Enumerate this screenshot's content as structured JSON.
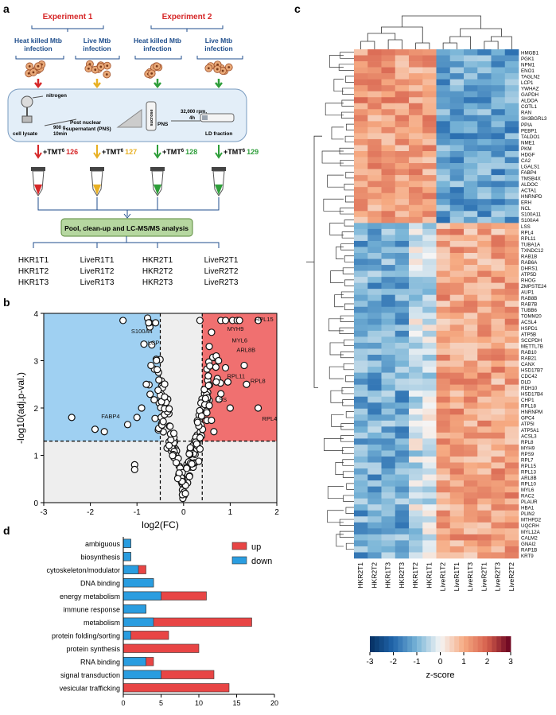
{
  "panels": {
    "a": {
      "letter": "a",
      "experiment1_title": "Experiment 1",
      "experiment2_title": "Experiment 2",
      "groups": [
        {
          "line1": "Heat killed Mtb",
          "line2": "infection"
        },
        {
          "line1": "Live Mtb",
          "line2": "infection"
        },
        {
          "line1": "Heat killed Mtb",
          "line2": "infection"
        },
        {
          "line1": "Live Mtb",
          "line2": "infection"
        }
      ],
      "protocol": {
        "nitrogen": "nitrogen",
        "cell_lysate": "cell lysate",
        "g_force_line1": "900 g,",
        "g_force_line2": "10min",
        "pns_line1": "Post nuclear",
        "pns_line2": "supernatant (PNS)",
        "sucrose": "sucrose",
        "pns": "PNS",
        "rpm_line1": "32,000 rpm,",
        "rpm_line2": "4h",
        "ld_fraction": "LD fraction"
      },
      "tmt_prefix": "+TMT",
      "tmt_superscript": "6",
      "tmt_labels": [
        "126",
        "127",
        "128",
        "129"
      ],
      "tmt_colors": [
        "#d62728",
        "#e8b023",
        "#2e9e3a",
        "#2e9e3a"
      ],
      "pool_label": "Pool, clean-up and LC-MS/MS analysis",
      "samples": [
        [
          "HKR1T1",
          "HKR1T2",
          "HKR1T3"
        ],
        [
          "LiveR1T1",
          "LiveR1T2",
          "LiveR1T3"
        ],
        [
          "HKR2T1",
          "HKR2T2",
          "HKR2T3"
        ],
        [
          "LiveR2T1",
          "LiveR2T2",
          "LiveR2T3"
        ]
      ]
    },
    "b": {
      "letter": "b",
      "chart_data": {
        "type": "scatter",
        "title": "",
        "xlabel": "log2(FC)",
        "ylabel": "-log10(adj.p-val.)",
        "xlim": [
          -3,
          2
        ],
        "ylim": [
          0,
          4
        ],
        "xticks": [
          -3,
          -2,
          -1,
          0,
          1,
          2
        ],
        "yticks": [
          0,
          1,
          2,
          3,
          4
        ],
        "y_threshold": 1.3,
        "x_thresholds": [
          -0.5,
          0.4
        ],
        "labels": [
          {
            "name": "S100A4",
            "x": -0.6,
            "y": 3.55
          },
          {
            "name": "LCP",
            "x": -0.45,
            "y": 3.3
          },
          {
            "name": "FABP4",
            "x": -1.3,
            "y": 1.75
          },
          {
            "name": "RPL15",
            "x": 1.45,
            "y": 3.8
          },
          {
            "name": "MYH9",
            "x": 0.85,
            "y": 3.6
          },
          {
            "name": "MYL6",
            "x": 0.95,
            "y": 3.35
          },
          {
            "name": "ARL8B",
            "x": 1.05,
            "y": 3.15
          },
          {
            "name": "RPL11",
            "x": 0.85,
            "y": 2.6
          },
          {
            "name": "RPL8",
            "x": 1.35,
            "y": 2.5
          },
          {
            "name": "LSS",
            "x": 0.6,
            "y": 2.1
          },
          {
            "name": "RPL4",
            "x": 1.6,
            "y": 1.7
          }
        ]
      }
    },
    "c": {
      "letter": "c",
      "columns": [
        "HKR2T1",
        "HKR2T2",
        "HKR1T3",
        "HKR2T3",
        "HKR1T2",
        "HKR1T1",
        "LiveR1T2",
        "LiveR1T1",
        "LiveR1T3",
        "LiveR2T1",
        "LiveR2T3",
        "LiveR2T2"
      ],
      "genes": [
        "HMGB1",
        "PGK1",
        "NPM1",
        "ENO1",
        "TAGLN2",
        "LCP1",
        "YWHAZ",
        "GAPDH",
        "ALDOA",
        "COTL1",
        "RAN",
        "SH3BGRL3",
        "PPIA",
        "PEBP1",
        "TALDO1",
        "NME1",
        "PKM",
        "HDGF",
        "CA2",
        "LGALS1",
        "FABP4",
        "TMSB4X",
        "ALDOC",
        "ACTA1",
        "HNRNPD",
        "ERH",
        "NCL",
        "S100A11",
        "S100A4",
        "LSS",
        "RPL4",
        "RPL11",
        "TUBA1A",
        "TXNDC12",
        "RAB1B",
        "RAB6A",
        "DHRS1",
        "ATP5D",
        "RHOG",
        "ZMPSTE24",
        "AUP1",
        "RAB8B",
        "RAB7B",
        "TUBB6",
        "TOMM20",
        "ACSL4",
        "HSPD1",
        "ATP5B",
        "SCCPDH",
        "METTL7B",
        "RAB10",
        "RAB21",
        "CANX",
        "HSD17B7",
        "CDC42",
        "DLD",
        "RDH10",
        "HSD17B4",
        "CHP1",
        "RPL18",
        "HNRNPM",
        "GPC4",
        "ATP5I",
        "ATP5A1",
        "ACSL3",
        "RPL8",
        "MYH9",
        "RPS9",
        "RPL7",
        "RPL15",
        "RPL13",
        "ARL8B",
        "RPL10",
        "MYL6",
        "RAC2",
        "PLAUR",
        "HBA1",
        "PLIN2",
        "MTHFD2",
        "UQCRH",
        "MYL12A",
        "CALM2",
        "GNAI2",
        "RAP1B",
        "KRT9"
      ],
      "colorbar_ticks": [
        "-3",
        "-2",
        "-1",
        "0",
        "1",
        "2",
        "3"
      ],
      "colorbar_label": "z-score"
    },
    "d": {
      "letter": "d",
      "chart_data": {
        "type": "bar",
        "orientation": "horizontal",
        "categories": [
          "ambiguous",
          "biosynthesis",
          "cytoskeleton/modulator",
          "DNA binding",
          "energy metabolism",
          "immune response",
          "metabolism",
          "protein folding/sorting",
          "protein synthesis",
          "RNA binding",
          "signal transduction",
          "vesicular trafficking"
        ],
        "series": [
          {
            "name": "up",
            "values": [
              0,
              0,
              1,
              0,
              6,
              0,
              13,
              5,
              10,
              1,
              7,
              14
            ],
            "color": "#e84545"
          },
          {
            "name": "down",
            "values": [
              1,
              1,
              2,
              4,
              5,
              3,
              4,
              1,
              0,
              3,
              5,
              0
            ],
            "color": "#2a9de0"
          }
        ],
        "stacked": true,
        "xlim": [
          0,
          20
        ],
        "xticks": [
          0,
          5,
          10,
          15,
          20
        ],
        "legend": "top-right",
        "xlabel": "",
        "ylabel": ""
      }
    }
  },
  "colors": {
    "up": "#e84545",
    "down": "#2a9de0",
    "volcano_blue": "#9fd0f2",
    "volcano_red": "#f07070",
    "volcano_grey": "#eeeeee",
    "experiment_red": "#d62728",
    "navy_text": "#1f4e8c",
    "pool_box": "#b6d7a0",
    "pool_border": "#5a8a3a"
  }
}
